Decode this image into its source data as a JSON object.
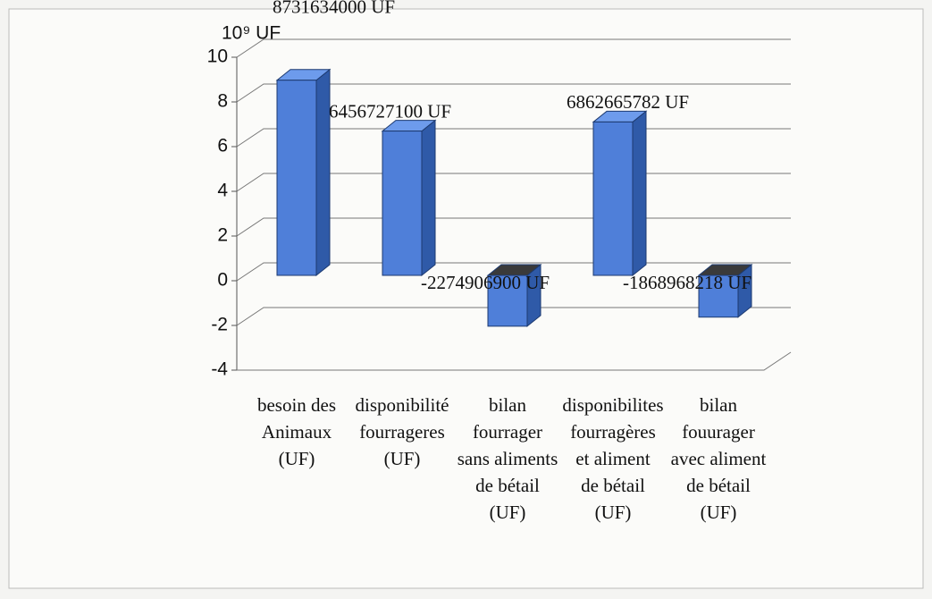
{
  "chart_data": {
    "type": "bar3d",
    "y_axis_label": "10⁹ UF",
    "categories": [
      [
        "besoin des",
        "Animaux",
        "(UF)"
      ],
      [
        "disponibilité",
        "fourrageres",
        "(UF)"
      ],
      [
        "bilan",
        "fourrager",
        "sans aliments",
        "de bétail",
        "(UF)"
      ],
      [
        "disponibilites",
        "fourragères",
        "et aliment",
        "de bétail",
        "(UF)"
      ],
      [
        "bilan",
        "fouurager",
        "avec aliment",
        "de bétail",
        "(UF)"
      ]
    ],
    "values": [
      8.731634,
      6.4567271,
      -2.2749069,
      6.862665782,
      -1.868968218
    ],
    "value_labels": [
      "8731634000 UF",
      "6456727100 UF",
      "-2274906900 UF",
      "6862665782 UF",
      "-1868968218 UF"
    ],
    "color": "#4f7fd9",
    "ylim": [
      -4,
      10
    ],
    "yticks": [
      -4,
      -2,
      0,
      2,
      4,
      6,
      8,
      10
    ],
    "grid": true
  }
}
